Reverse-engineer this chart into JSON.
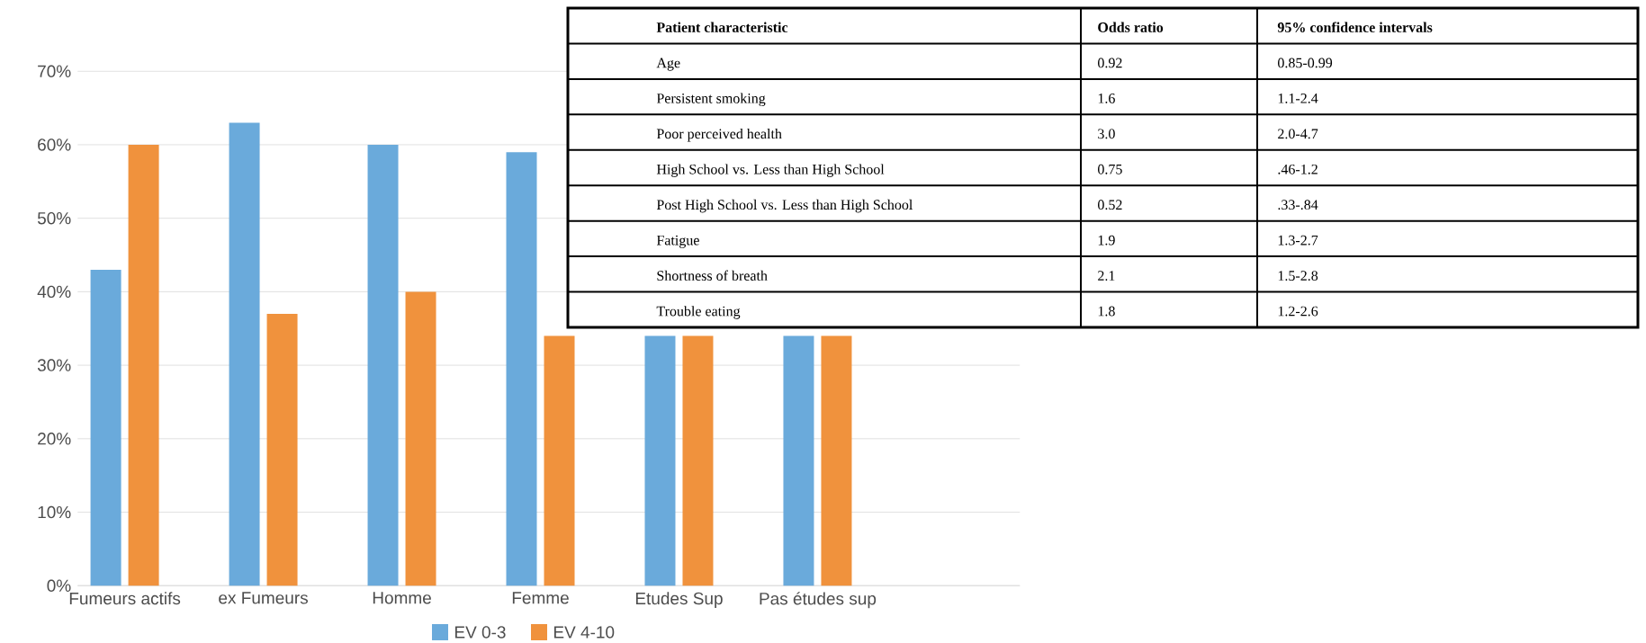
{
  "chart_data": [
    {
      "type": "bar",
      "categories": [
        "Fumeurs actifs",
        "ex Fumeurs",
        "Homme",
        "Femme",
        "Etudes Sup",
        "Pas études sup"
      ],
      "series": [
        {
          "name": "EV 0-3",
          "color": "#6aaadb",
          "values": [
            43,
            63,
            60,
            59,
            34,
            34
          ]
        },
        {
          "name": "EV 4-10",
          "color": "#f0923d",
          "values": [
            60,
            37,
            40,
            34,
            34,
            34
          ]
        }
      ],
      "ylim": [
        0,
        70
      ],
      "yticks": [
        {
          "value": 0,
          "label": "0%"
        },
        {
          "value": 10,
          "label": "10%"
        },
        {
          "value": 20,
          "label": "20%"
        },
        {
          "value": 30,
          "label": "30%"
        },
        {
          "value": 40,
          "label": "40%"
        },
        {
          "value": 50,
          "label": "50%"
        },
        {
          "value": 60,
          "label": "60%"
        },
        {
          "value": 70,
          "label": "70%"
        }
      ],
      "grid": "y",
      "legend": "bottom"
    },
    {
      "type": "other",
      "annotations": [
        "Patient characteristic",
        "Odds ratio",
        "95% confidence intervals",
        "Age",
        "0.92",
        "0.85-0.99",
        "Persistent smoking",
        "1.6",
        "1.1-2.4",
        "Poor perceived health",
        "3.0",
        "2.0-4.7",
        "High School vs. Less than High School",
        "0.75",
        ".46-1.2",
        "Post High School vs. Less than High School",
        "0.52",
        ".33-.84",
        "Fatigue",
        "1.9",
        "1.3-2.7",
        "Shortness of breath",
        "2.1",
        "1.5-2.8",
        "Trouble eating",
        "1.8",
        "1.2-2.6"
      ]
    }
  ]
}
